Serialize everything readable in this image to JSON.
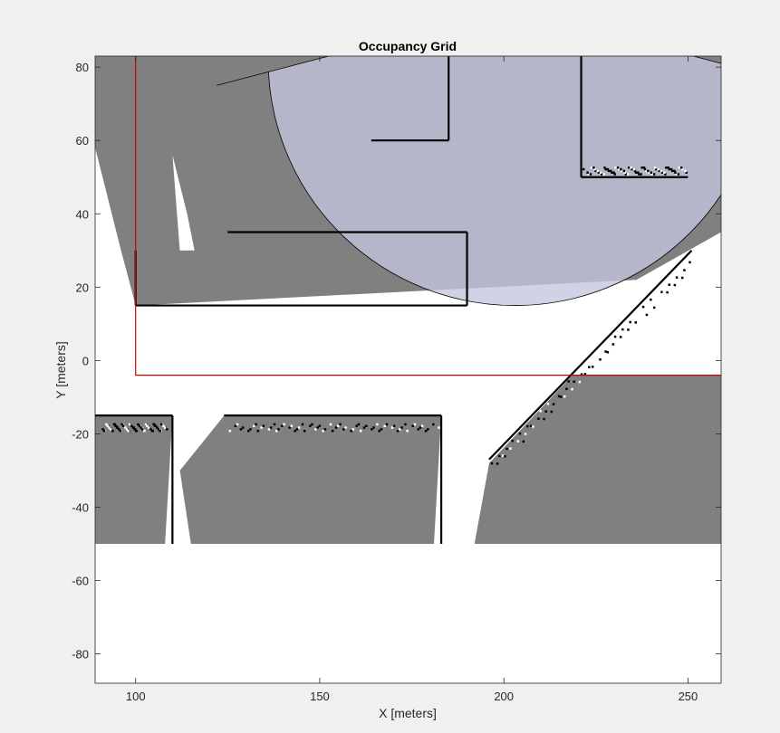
{
  "chart_data": {
    "type": "heatmap",
    "title": "Occupancy Grid",
    "xlabel": "X [meters]",
    "ylabel": "Y [meters]",
    "xlim": [
      89,
      259
    ],
    "ylim": [
      -88,
      83
    ],
    "xticks": [
      100,
      150,
      200,
      250
    ],
    "yticks": [
      80,
      60,
      40,
      20,
      0,
      -20,
      -40,
      -60,
      -80
    ],
    "grid": false,
    "legend": "none",
    "colors": {
      "occupied": "#000000",
      "free": "#ffffff",
      "unknown": "#808080",
      "sensor_overlay": "#c5c5e0",
      "overlay_on_unknown": "#62627e",
      "map_boundary": "#cc0000",
      "frame_background": "#f0f0f0"
    },
    "unknown_regions": [
      [
        [
          89,
          83
        ],
        [
          259,
          83
        ],
        [
          259,
          30
        ],
        [
          236,
          22
        ],
        [
          223,
          18
        ],
        [
          194,
          15
        ],
        [
          100,
          15
        ],
        [
          96,
          30
        ],
        [
          89,
          58
        ]
      ],
      [
        [
          190,
          16
        ],
        [
          259,
          30
        ],
        [
          259,
          -50
        ],
        [
          192,
          -50
        ],
        [
          196,
          -28
        ],
        [
          230,
          8
        ]
      ],
      [
        [
          89,
          -15
        ],
        [
          110,
          -15
        ],
        [
          109,
          -50
        ],
        [
          89,
          -50
        ]
      ],
      [
        [
          115,
          -50
        ],
        [
          112,
          -30
        ],
        [
          124,
          -15
        ],
        [
          183,
          -15
        ],
        [
          183,
          -50
        ]
      ],
      [
        [
          122,
          36
        ],
        [
          140,
          36
        ],
        [
          144,
          42
        ],
        [
          122,
          44
        ]
      ],
      [
        [
          153,
          25
        ],
        [
          190,
          25
        ],
        [
          190,
          16
        ],
        [
          153,
          16
        ]
      ],
      [
        [
          106,
          43
        ],
        [
          110,
          56
        ],
        [
          112,
          30
        ],
        [
          104,
          27
        ]
      ]
    ],
    "free_regions": [
      [
        [
          89,
          58
        ],
        [
          96,
          30
        ],
        [
          100,
          15
        ],
        [
          95,
          12
        ],
        [
          89,
          12
        ]
      ],
      [
        [
          100,
          15
        ],
        [
          236,
          22
        ],
        [
          259,
          35
        ],
        [
          259,
          -4
        ],
        [
          89,
          -4
        ],
        [
          89,
          10
        ]
      ],
      [
        [
          110,
          -15
        ],
        [
          124,
          -15
        ],
        [
          112,
          -30
        ],
        [
          115,
          -50
        ],
        [
          108,
          -50
        ]
      ],
      [
        [
          183,
          -15
        ],
        [
          196,
          -28
        ],
        [
          192,
          -50
        ],
        [
          181,
          -50
        ]
      ],
      [
        [
          89,
          -50
        ],
        [
          259,
          -50
        ],
        [
          259,
          -88
        ],
        [
          89,
          -88
        ]
      ],
      [
        [
          110,
          56
        ],
        [
          112,
          30
        ],
        [
          116,
          30
        ],
        [
          114,
          40
        ]
      ]
    ],
    "occupied_segments": [
      [
        [
          100,
          15
        ],
        [
          190,
          15
        ]
      ],
      [
        [
          100,
          15
        ],
        [
          100,
          30
        ]
      ],
      [
        [
          125,
          35
        ],
        [
          190,
          35
        ]
      ],
      [
        [
          190,
          35
        ],
        [
          190,
          15
        ]
      ],
      [
        [
          164,
          60
        ],
        [
          185,
          60
        ]
      ],
      [
        [
          185,
          60
        ],
        [
          185,
          83
        ]
      ],
      [
        [
          221,
          50
        ],
        [
          250,
          50
        ]
      ],
      [
        [
          221,
          50
        ],
        [
          221,
          83
        ]
      ],
      [
        [
          89,
          -15
        ],
        [
          110,
          -15
        ]
      ],
      [
        [
          110,
          -15
        ],
        [
          110,
          -50
        ]
      ],
      [
        [
          124,
          -15
        ],
        [
          183,
          -15
        ]
      ],
      [
        [
          183,
          -15
        ],
        [
          183,
          -50
        ]
      ],
      [
        [
          196,
          -27
        ],
        [
          251,
          30
        ]
      ]
    ],
    "speckle_segments": [
      [
        [
          196,
          -29
        ],
        [
          251,
          27
        ]
      ],
      [
        [
          91,
          -18
        ],
        [
          108,
          -18
        ]
      ],
      [
        [
          126,
          -18
        ],
        [
          181,
          -18
        ]
      ],
      [
        [
          222,
          52
        ],
        [
          249,
          52
        ]
      ]
    ],
    "sensor_range_circle": {
      "center": [
        203,
        82
      ],
      "radius": 67,
      "cut_lines": [
        [
          [
            122,
            75
          ],
          [
            160,
            85
          ]
        ],
        [
          [
            244,
            85
          ],
          [
            259,
            81
          ]
        ]
      ]
    },
    "map_boundary": {
      "x_start": 100,
      "y_end": -4
    }
  }
}
